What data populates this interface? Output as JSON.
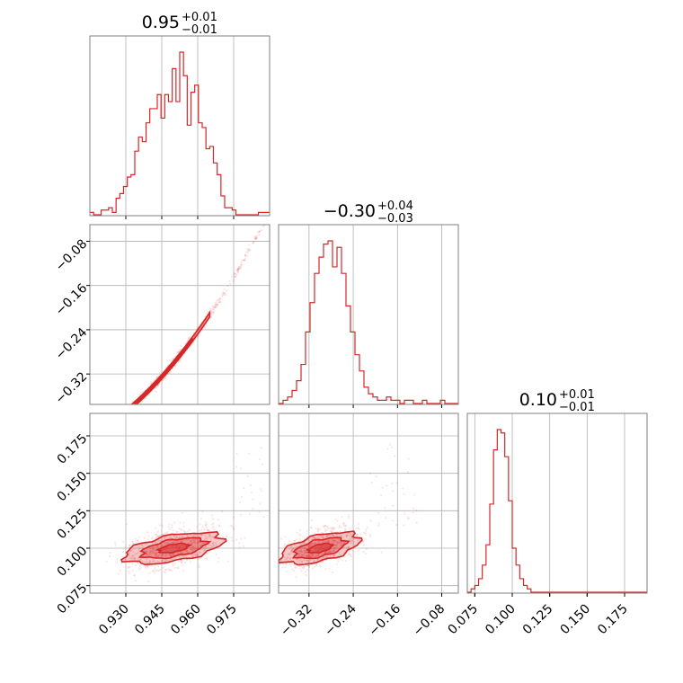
{
  "figure": {
    "type": "corner-plot",
    "color": "#d62728",
    "grid_color": "#b0b0b0",
    "frame_color": "#808080"
  },
  "titles": [
    {
      "value": "0.95",
      "plus": "+0.01",
      "minus": "−0.01"
    },
    {
      "value": "−0.30",
      "plus": "+0.04",
      "minus": "−0.03"
    },
    {
      "value": "0.10",
      "plus": "+0.01",
      "minus": "−0.01"
    }
  ],
  "axes": {
    "p0": {
      "range": [
        0.915,
        0.99
      ],
      "ticks": [
        0.93,
        0.945,
        0.96,
        0.975
      ],
      "tick_labels": [
        "0.930",
        "0.945",
        "0.960",
        "0.975"
      ]
    },
    "p1": {
      "range": [
        -0.375,
        -0.05
      ],
      "ticks": [
        -0.32,
        -0.24,
        -0.16,
        -0.08
      ],
      "tick_labels": [
        "−0.32",
        "−0.24",
        "−0.16",
        "−0.08"
      ]
    },
    "p2": {
      "range": [
        0.07,
        0.19
      ],
      "ticks": [
        0.075,
        0.1,
        0.125,
        0.15,
        0.175
      ],
      "tick_labels": [
        "0.075",
        "0.100",
        "0.125",
        "0.150",
        "0.175"
      ]
    }
  },
  "chart_data": [
    {
      "type": "histogram",
      "variable": "p0",
      "bin_edges_range": [
        0.915,
        0.99
      ],
      "counts": [
        1,
        0,
        0,
        2,
        2,
        3,
        1,
        7,
        9,
        12,
        16,
        17,
        27,
        33,
        31,
        39,
        45,
        45,
        51,
        41,
        51,
        48,
        62,
        48,
        69,
        59,
        38,
        52,
        55,
        39,
        37,
        28,
        29,
        22,
        17,
        8,
        3,
        3,
        2,
        0,
        0,
        0,
        0,
        0,
        0,
        1,
        1,
        1
      ]
    },
    {
      "type": "histogram",
      "variable": "p1",
      "bin_edges_range": [
        -0.375,
        -0.05
      ],
      "counts": [
        0,
        1,
        2,
        4,
        7,
        12,
        22,
        31,
        40,
        45,
        49,
        50,
        42,
        48,
        40,
        30,
        22,
        15,
        10,
        5,
        3,
        2,
        1,
        1,
        2,
        1,
        1,
        0,
        1,
        1,
        0,
        0,
        1,
        0,
        0,
        0,
        1,
        0,
        0,
        0
      ]
    },
    {
      "type": "histogram",
      "variable": "p2",
      "bin_edges_range": [
        0.07,
        0.19
      ],
      "counts": [
        0,
        1,
        2,
        4,
        8,
        14,
        26,
        42,
        48,
        47,
        40,
        27,
        13,
        8,
        4,
        2,
        1,
        0,
        0,
        0,
        0,
        0,
        0,
        0,
        0,
        0,
        0,
        0,
        0,
        0,
        0,
        0,
        0,
        0,
        0,
        0,
        0,
        0,
        0,
        0,
        0,
        0,
        0,
        0,
        0,
        0,
        0,
        0
      ]
    },
    {
      "type": "scatter-2d",
      "x": "p0",
      "y": "p1",
      "relation": "y = -0.30 + 5.2*(x-0.95) + 40*(x-0.95)^2",
      "sigma_x": 0.01,
      "scatter_y": 0.004
    },
    {
      "type": "scatter-2d",
      "x": "p0",
      "y": "p2",
      "mean": [
        0.95,
        0.1
      ],
      "sigma": [
        0.01,
        0.007
      ],
      "correlation": 0.45
    },
    {
      "type": "scatter-2d",
      "x": "p1",
      "y": "p2",
      "mean": [
        -0.3,
        0.1
      ],
      "sigma": [
        0.035,
        0.007
      ],
      "correlation": 0.5
    }
  ]
}
